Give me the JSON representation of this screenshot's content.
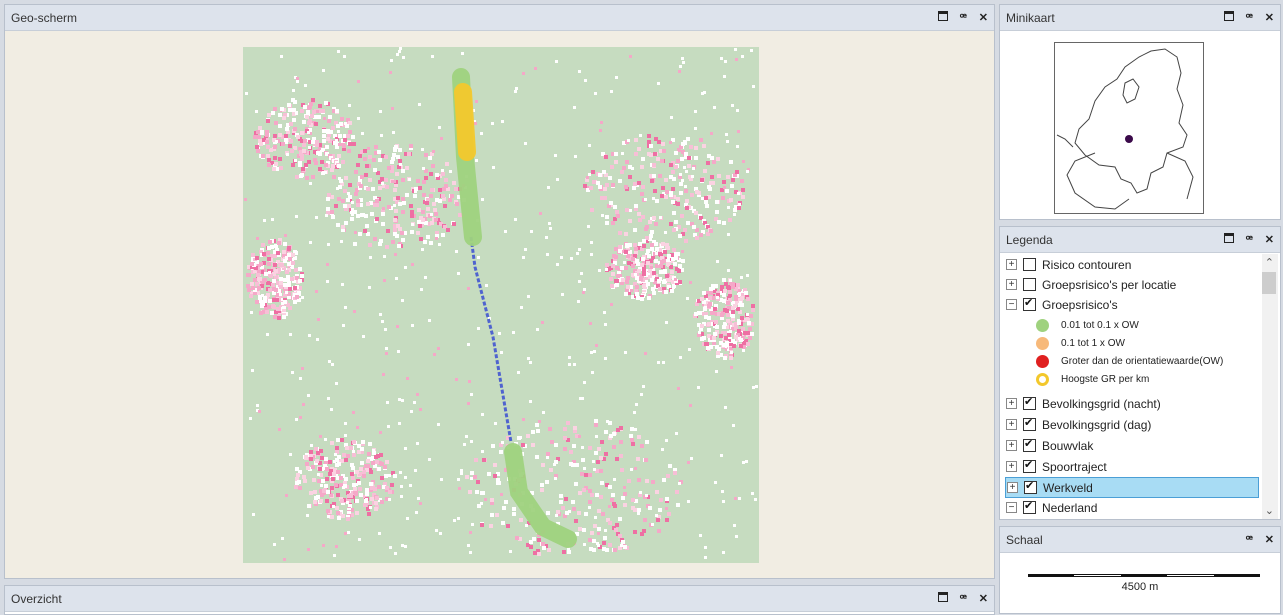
{
  "geo": {
    "title": "Geo-scherm"
  },
  "overzicht": {
    "title": "Overzicht"
  },
  "minikaart": {
    "title": "Minikaart"
  },
  "legenda": {
    "title": "Legenda",
    "layers": [
      {
        "label": "Risico contouren",
        "expand": "+",
        "checked": false
      },
      {
        "label": "Groepsrisico's per locatie",
        "expand": "+",
        "checked": false
      },
      {
        "label": "Groepsrisico's",
        "expand": "−",
        "checked": true
      },
      {
        "label": "Bevolkingsgrid (nacht)",
        "expand": "+",
        "checked": true
      },
      {
        "label": "Bevolkingsgrid (dag)",
        "expand": "+",
        "checked": true
      },
      {
        "label": "Bouwvlak",
        "expand": "+",
        "checked": true
      },
      {
        "label": "Spoortraject",
        "expand": "+",
        "checked": true
      },
      {
        "label": "Werkveld",
        "expand": "+",
        "checked": true
      },
      {
        "label": "Nederland",
        "expand": "−",
        "checked": true
      }
    ],
    "sublegend": [
      {
        "label": "0.01 tot 0.1 x OW",
        "color": "#9fd27e"
      },
      {
        "label": "0.1 tot 1 x OW",
        "color": "#f7b97a"
      },
      {
        "label": "Groter dan de orientatiewaarde(OW)",
        "color": "#e02020"
      },
      {
        "label": "Hoogste GR per km",
        "color": "#f3c82c"
      }
    ]
  },
  "schaal": {
    "title": "Schaal",
    "label": "4500 m"
  },
  "colors": {
    "map_bg": "#c6dcc0",
    "track": "#5b6fd6",
    "urban": "#f0a0c0"
  }
}
